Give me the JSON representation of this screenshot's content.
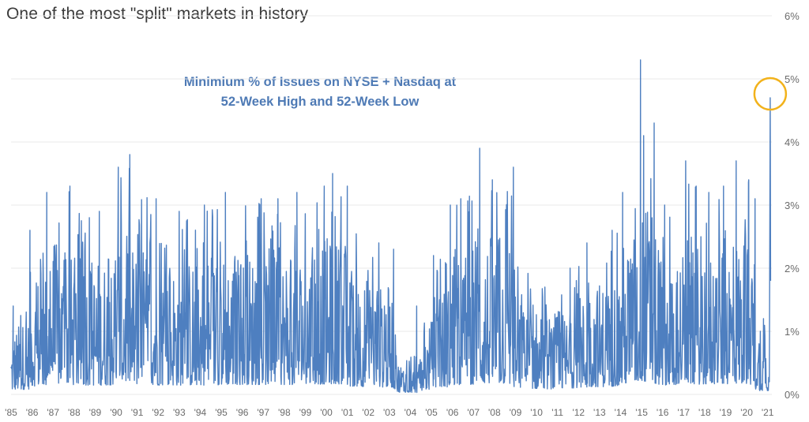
{
  "title": "One of the most \"split\" markets in history",
  "chart_data": {
    "type": "line",
    "annotation_lines": [
      "Minimium % of Issues on NYSE + Nasdaq at",
      "52-Week High and 52-Week Low"
    ],
    "x_tick_labels": [
      "'85",
      "'86",
      "'87",
      "'88",
      "'89",
      "'90",
      "'91",
      "'92",
      "'93",
      "'94",
      "'95",
      "'96",
      "'97",
      "'98",
      "'99",
      "'00",
      "'01",
      "'02",
      "'03",
      "'04",
      "'05",
      "'06",
      "'07",
      "'08",
      "'09",
      "'10",
      "'11",
      "'12",
      "'13",
      "'14",
      "'15",
      "'16",
      "'17",
      "'18",
      "'19",
      "'20",
      "'21"
    ],
    "x_range": [
      1985,
      2021.2
    ],
    "y_tick_labels": [
      "0%",
      "1%",
      "2%",
      "3%",
      "4%",
      "5%",
      "6%"
    ],
    "y_range": [
      0,
      6
    ],
    "grid": true,
    "series_color": "#4e7fc0",
    "highlight_color": "#f2b21b",
    "highlight_point": {
      "x": 2021.12,
      "y": 4.7
    },
    "peaks": [
      {
        "x": 1985.1,
        "y": 1.4
      },
      {
        "x": 1985.9,
        "y": 2.6
      },
      {
        "x": 1986.7,
        "y": 3.2
      },
      {
        "x": 1987.8,
        "y": 3.3
      },
      {
        "x": 1989.2,
        "y": 2.9
      },
      {
        "x": 1990.1,
        "y": 3.6
      },
      {
        "x": 1990.65,
        "y": 3.8
      },
      {
        "x": 1991.9,
        "y": 3.1
      },
      {
        "x": 1993.0,
        "y": 2.9
      },
      {
        "x": 1994.2,
        "y": 3.0
      },
      {
        "x": 1995.2,
        "y": 3.2
      },
      {
        "x": 1996.9,
        "y": 3.1
      },
      {
        "x": 1997.7,
        "y": 3.1
      },
      {
        "x": 1998.6,
        "y": 3.2
      },
      {
        "x": 1999.9,
        "y": 3.3
      },
      {
        "x": 2000.3,
        "y": 3.5
      },
      {
        "x": 2001.0,
        "y": 3.3
      },
      {
        "x": 2002.5,
        "y": 2.4
      },
      {
        "x": 2003.2,
        "y": 2.3
      },
      {
        "x": 2004.3,
        "y": 1.4
      },
      {
        "x": 2005.1,
        "y": 2.2
      },
      {
        "x": 2005.9,
        "y": 3.0
      },
      {
        "x": 2006.4,
        "y": 3.1
      },
      {
        "x": 2007.3,
        "y": 3.9
      },
      {
        "x": 2007.9,
        "y": 3.4
      },
      {
        "x": 2008.9,
        "y": 3.6
      },
      {
        "x": 2010.4,
        "y": 1.7
      },
      {
        "x": 2011.6,
        "y": 2.0
      },
      {
        "x": 2012.4,
        "y": 2.4
      },
      {
        "x": 2013.6,
        "y": 2.6
      },
      {
        "x": 2014.1,
        "y": 3.2
      },
      {
        "x": 2014.95,
        "y": 5.3
      },
      {
        "x": 2015.1,
        "y": 4.1
      },
      {
        "x": 2015.6,
        "y": 4.3
      },
      {
        "x": 2016.1,
        "y": 3.0
      },
      {
        "x": 2017.1,
        "y": 3.7
      },
      {
        "x": 2017.6,
        "y": 3.3
      },
      {
        "x": 2018.2,
        "y": 3.2
      },
      {
        "x": 2018.9,
        "y": 3.3
      },
      {
        "x": 2019.5,
        "y": 3.7
      },
      {
        "x": 2020.1,
        "y": 3.4
      },
      {
        "x": 2020.4,
        "y": 3.1
      },
      {
        "x": 2020.8,
        "y": 1.2
      }
    ]
  }
}
